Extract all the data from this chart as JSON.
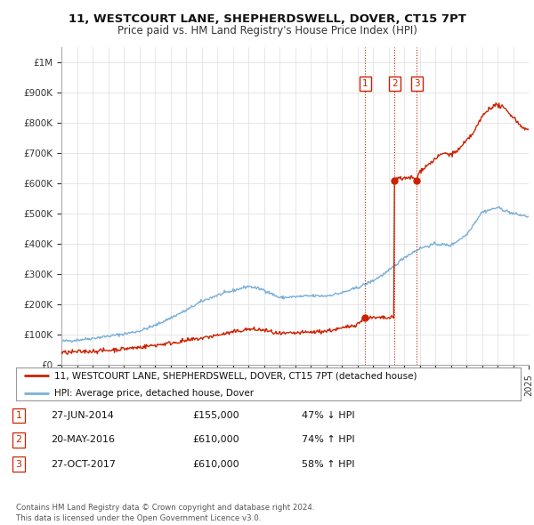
{
  "title": "11, WESTCOURT LANE, SHEPHERDSWELL, DOVER, CT15 7PT",
  "subtitle": "Price paid vs. HM Land Registry's House Price Index (HPI)",
  "hpi_color": "#7ab0d8",
  "price_color": "#cc2200",
  "annotation_color": "#cc2200",
  "background_color": "#ffffff",
  "grid_color": "#dddddd",
  "ylim": [
    0,
    1050000
  ],
  "yticks": [
    0,
    100000,
    200000,
    300000,
    400000,
    500000,
    600000,
    700000,
    800000,
    900000,
    1000000
  ],
  "ytick_labels": [
    "£0",
    "£100K",
    "£200K",
    "£300K",
    "£400K",
    "£500K",
    "£600K",
    "£700K",
    "£800K",
    "£900K",
    "£1M"
  ],
  "transactions": [
    {
      "date": 2014.49,
      "price": 155000,
      "label": "1"
    },
    {
      "date": 2016.38,
      "price": 610000,
      "label": "2"
    },
    {
      "date": 2017.82,
      "price": 610000,
      "label": "3"
    }
  ],
  "table_rows": [
    {
      "num": "1",
      "date": "27-JUN-2014",
      "price": "£155,000",
      "change": "47% ↓ HPI"
    },
    {
      "num": "2",
      "date": "20-MAY-2016",
      "price": "£610,000",
      "change": "74% ↑ HPI"
    },
    {
      "num": "3",
      "date": "27-OCT-2017",
      "price": "£610,000",
      "change": "58% ↑ HPI"
    }
  ],
  "legend_entries": [
    "11, WESTCOURT LANE, SHEPHERDSWELL, DOVER, CT15 7PT (detached house)",
    "HPI: Average price, detached house, Dover"
  ],
  "footer": "Contains HM Land Registry data © Crown copyright and database right 2024.\nThis data is licensed under the Open Government Licence v3.0.",
  "xmin": 1995,
  "xmax": 2025
}
